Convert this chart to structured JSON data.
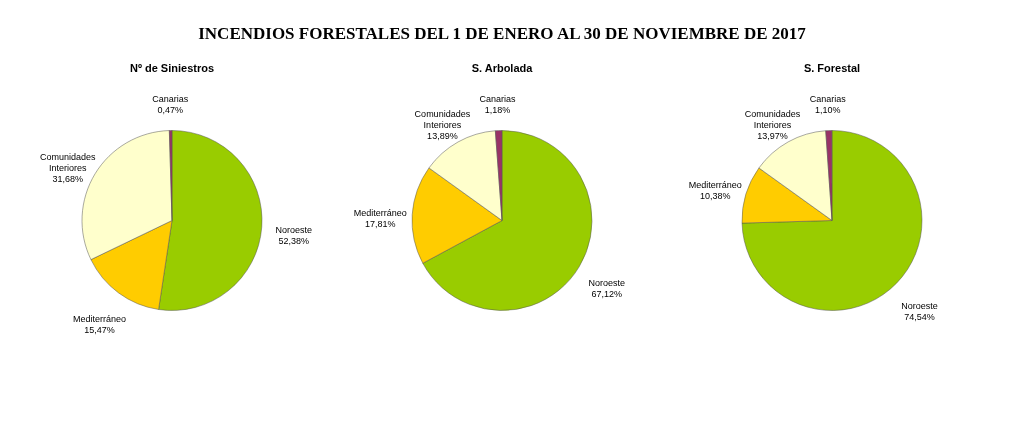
{
  "chart_data": [
    {
      "type": "pie",
      "title": "INCENDIOS FORESTALES DEL 1 DE ENERO AL 30 DE NOVIEMBRE DE 2017",
      "subtitle": "Nº de Siniestros",
      "categories": [
        "Noroeste",
        "Mediterráneo",
        "Comunidades Interiores",
        "Canarias"
      ],
      "values": [
        52.38,
        15.47,
        31.68,
        0.47
      ],
      "value_labels": [
        "52,38%",
        "15,47%",
        "31,68%",
        "0,47%"
      ],
      "colors": [
        "#99cc00",
        "#ffcc00",
        "#ffffcc",
        "#993366"
      ],
      "legend": false
    },
    {
      "type": "pie",
      "subtitle": "S. Arbolada",
      "categories": [
        "Noroeste",
        "Mediterráneo",
        "Comunidades Interiores",
        "Canarias"
      ],
      "values": [
        67.12,
        17.81,
        13.89,
        1.18
      ],
      "value_labels": [
        "67,12%",
        "17,81%",
        "13,89%",
        "1,18%"
      ],
      "colors": [
        "#99cc00",
        "#ffcc00",
        "#ffffcc",
        "#993366"
      ],
      "legend": false
    },
    {
      "type": "pie",
      "subtitle": "S. Forestal",
      "categories": [
        "Noroeste",
        "Mediterráneo",
        "Comunidades Interiores",
        "Canarias"
      ],
      "values": [
        74.54,
        10.38,
        13.97,
        1.1
      ],
      "value_labels": [
        "74,54%",
        "10,38%",
        "13,97%",
        "1,10%"
      ],
      "colors": [
        "#99cc00",
        "#ffcc00",
        "#ffffcc",
        "#993366"
      ],
      "legend": false
    }
  ]
}
